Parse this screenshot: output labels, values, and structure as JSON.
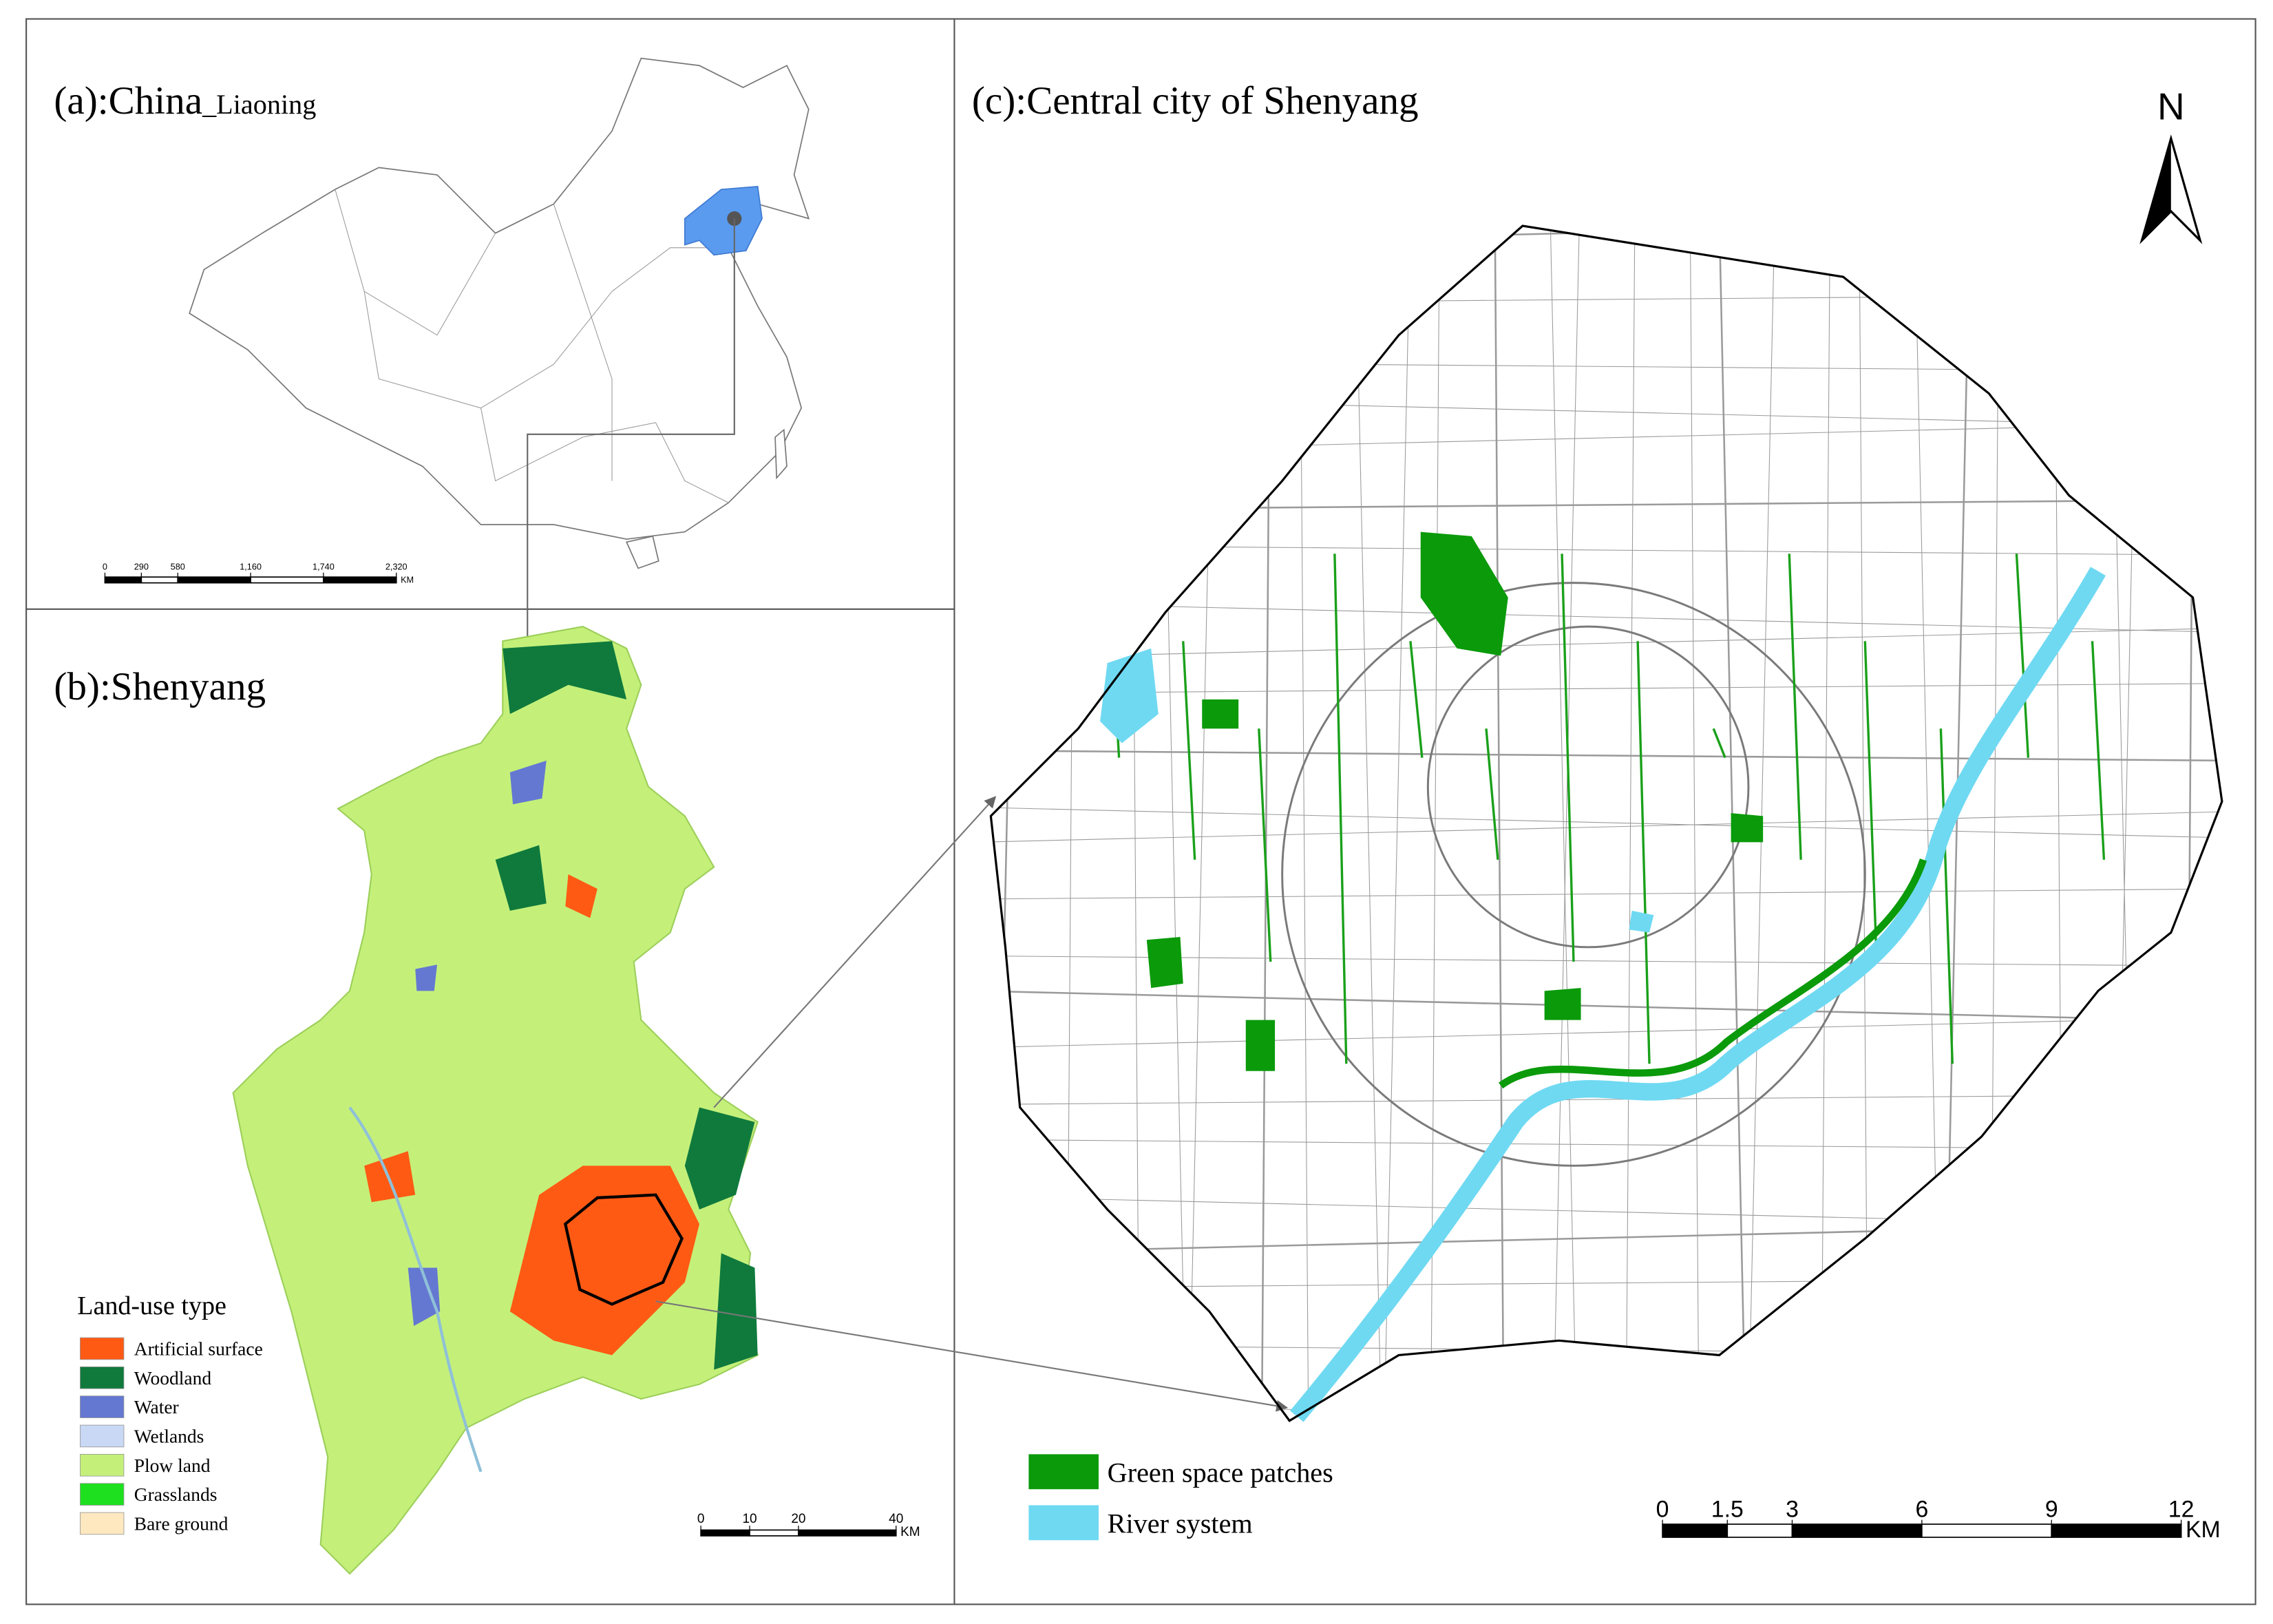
{
  "panel_a": {
    "title": "(a):China",
    "title_suffix": "_Liaoning",
    "scale": {
      "ticks": [
        0,
        290,
        580,
        {
          "value": 1160,
          "label": "1,160"
        },
        {
          "value": 1740,
          "label": "1,740"
        },
        {
          "value": 2320,
          "label": "2,320"
        }
      ],
      "unit": "KM"
    }
  },
  "panel_b": {
    "title": "(b):Shenyang",
    "legend_title": "Land-use type",
    "legend": [
      {
        "name": "Artificial surface",
        "color": "#ff5a14"
      },
      {
        "name": "Woodland",
        "color": "#0f7a3c"
      },
      {
        "name": "Water",
        "color": "#6478d2"
      },
      {
        "name": "Wetlands",
        "color": "#c8d8f5"
      },
      {
        "name": "Plow land",
        "color": "#c4f07a"
      },
      {
        "name": "Grasslands",
        "color": "#1ee01e"
      },
      {
        "name": "Bare ground",
        "color": "#fde8c0"
      }
    ],
    "scale": {
      "ticks": [
        0,
        10,
        20,
        40
      ],
      "unit": "KM"
    }
  },
  "panel_c": {
    "title": "(c):Central city of Shenyang",
    "north": "N",
    "legend": [
      {
        "name": "Green space patches",
        "color": "#0a9a0a"
      },
      {
        "name": "River system",
        "color": "#6fd9f2"
      }
    ],
    "scale": {
      "ticks": [
        0,
        1.5,
        3,
        6,
        9,
        12
      ],
      "unit": "KM"
    }
  }
}
